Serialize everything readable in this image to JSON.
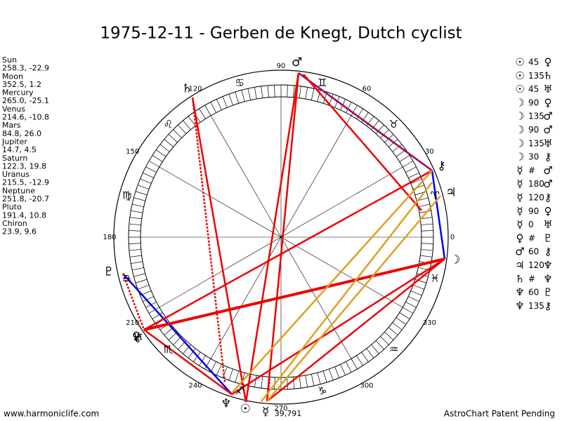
{
  "title": "1975-12-11 - Gerben de Knegt, Dutch cyclist",
  "planets": [
    {
      "name": "Sun",
      "coords": "258.3, -22.9",
      "glyph": "☉"
    },
    {
      "name": "Moon",
      "coords": "352.5, 1.2",
      "glyph": "☽"
    },
    {
      "name": "Mercury",
      "coords": "265.0, -25.1",
      "glyph": "☿"
    },
    {
      "name": "Venus",
      "coords": "214.6, -10.8",
      "glyph": "♀"
    },
    {
      "name": "Mars",
      "coords": "84.8, 26.0",
      "glyph": "♂"
    },
    {
      "name": "Jupiter",
      "coords": "14.7, 4.5",
      "glyph": "♃"
    },
    {
      "name": "Saturn",
      "coords": "122.3, 19.8",
      "glyph": "♄"
    },
    {
      "name": "Uranus",
      "coords": "215.5, -12.9",
      "glyph": "♅"
    },
    {
      "name": "Neptune",
      "coords": "251.8, -20.7",
      "glyph": "♆"
    },
    {
      "name": "Pluto",
      "coords": "191.4, 10.8",
      "glyph": "♇"
    },
    {
      "name": "Chiron",
      "coords": "23.9, 9.6",
      "glyph": "⚷"
    }
  ],
  "degree_labels": [
    0,
    30,
    60,
    90,
    120,
    150,
    180,
    210,
    240,
    270,
    300,
    330
  ],
  "zodiac": [
    "♈",
    "♉",
    "♊",
    "♋",
    "♌",
    "♍",
    "♎",
    "♏",
    "♐",
    "♑",
    "♒",
    "♓"
  ],
  "day_count": "39,791",
  "aspects": [
    {
      "a": "☉",
      "angle": "45",
      "b": "♀"
    },
    {
      "a": "☉",
      "angle": "135",
      "b": "♄"
    },
    {
      "a": "☉",
      "angle": "45",
      "b": "♅"
    },
    {
      "a": "☽",
      "angle": "90",
      "b": "♀"
    },
    {
      "a": "☽",
      "angle": "135",
      "b": "♂"
    },
    {
      "a": "☽",
      "angle": "90",
      "b": "♂"
    },
    {
      "a": "☽",
      "angle": "135",
      "b": "♅"
    },
    {
      "a": "☽",
      "angle": "30",
      "b": "⚷"
    },
    {
      "a": "☿",
      "angle": "#",
      "b": "♂"
    },
    {
      "a": "☿",
      "angle": "180",
      "b": "♂"
    },
    {
      "a": "☿",
      "angle": "120",
      "b": "⚷"
    },
    {
      "a": "☿",
      "angle": "90",
      "b": "♀"
    },
    {
      "a": "☿",
      "angle": "0",
      "b": "♅"
    },
    {
      "a": "♀",
      "angle": "#",
      "b": "♇"
    },
    {
      "a": "♂",
      "angle": "60",
      "b": "⚷"
    },
    {
      "a": "♃",
      "angle": "120",
      "b": "♆"
    },
    {
      "a": "♄",
      "angle": "#",
      "b": "♆"
    },
    {
      "a": "♆",
      "angle": "60",
      "b": "♇"
    },
    {
      "a": "♆",
      "angle": "135",
      "b": "⚷"
    }
  ],
  "footer": {
    "left": "www.harmoniclife.com",
    "right": "AstroChart Patent Pending"
  }
}
